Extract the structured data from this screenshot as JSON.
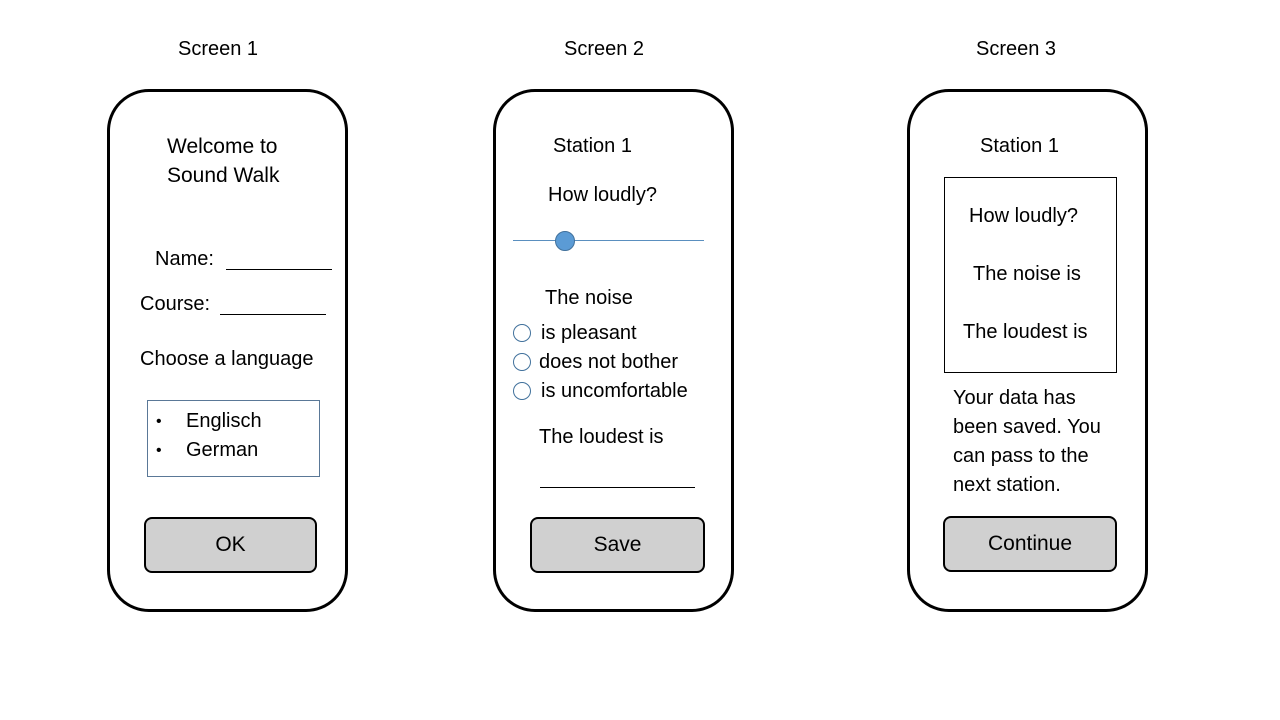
{
  "screens": [
    {
      "label": "Screen 1",
      "welcome_line1": "Welcome to",
      "welcome_line2": "Sound Walk",
      "name_label": "Name:",
      "course_label": "Course:",
      "language_prompt": "Choose a language",
      "language_options": [
        "Englisch",
        "German"
      ],
      "button_label": "OK"
    },
    {
      "label": "Screen 2",
      "station_title": "Station 1",
      "loudness_question": "How loudly?",
      "slider_value": 0.27,
      "noise_heading": "The noise",
      "noise_options": [
        "is pleasant",
        "does not bother",
        "is uncomfortable"
      ],
      "loudest_label": "The loudest is",
      "button_label": "Save"
    },
    {
      "label": "Screen 3",
      "station_title": "Station 1",
      "summary_items": [
        "How loudly?",
        "The noise is",
        "The loudest is"
      ],
      "message_lines": [
        "Your data has",
        "been saved. You",
        "can pass to the",
        "next station."
      ],
      "button_label": "Continue"
    }
  ],
  "colors": {
    "button_fill": "#d0d0d0",
    "accent": "#5b9bd5",
    "list_border": "#5a7897"
  }
}
